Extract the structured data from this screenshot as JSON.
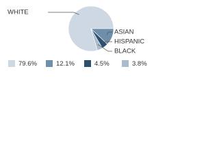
{
  "chart_data": {
    "type": "pie",
    "categories": [
      "WHITE",
      "ASIAN",
      "HISPANIC",
      "BLACK"
    ],
    "values": [
      79.6,
      12.1,
      4.5,
      3.8
    ],
    "value_labels": [
      "79.6%",
      "12.1%",
      "4.5%",
      "3.8%"
    ],
    "colors": [
      "#cdd8e3",
      "#6f8ea9",
      "#2e5070",
      "#a9bccd"
    ]
  }
}
